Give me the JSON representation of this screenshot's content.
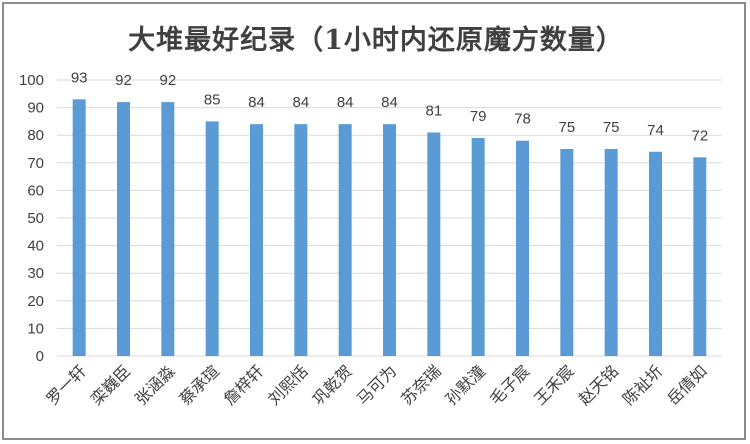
{
  "chart_data": {
    "type": "bar",
    "title": "大堆最好纪录（1小时内还原魔方数量）",
    "categories": [
      "罗一轩",
      "栾巍臣",
      "张涵淼",
      "蔡承瑄",
      "詹梓轩",
      "刘熙恬",
      "巩乾贺",
      "马可为",
      "苏奈瑞",
      "孙默潼",
      "毛子宸",
      "王禾宸",
      "赵天铭",
      "陈祉圻",
      "岳倩如"
    ],
    "values": [
      93,
      92,
      92,
      85,
      84,
      84,
      84,
      84,
      81,
      79,
      78,
      75,
      75,
      74,
      72
    ],
    "xlabel": "",
    "ylabel": "",
    "ylim": [
      0,
      100
    ],
    "yticks": [
      0,
      10,
      20,
      30,
      40,
      50,
      60,
      70,
      80,
      90,
      100
    ],
    "grid": true,
    "legend": "none",
    "bar_color": "#5b9bd5",
    "grid_color": "#d9d9d9"
  }
}
